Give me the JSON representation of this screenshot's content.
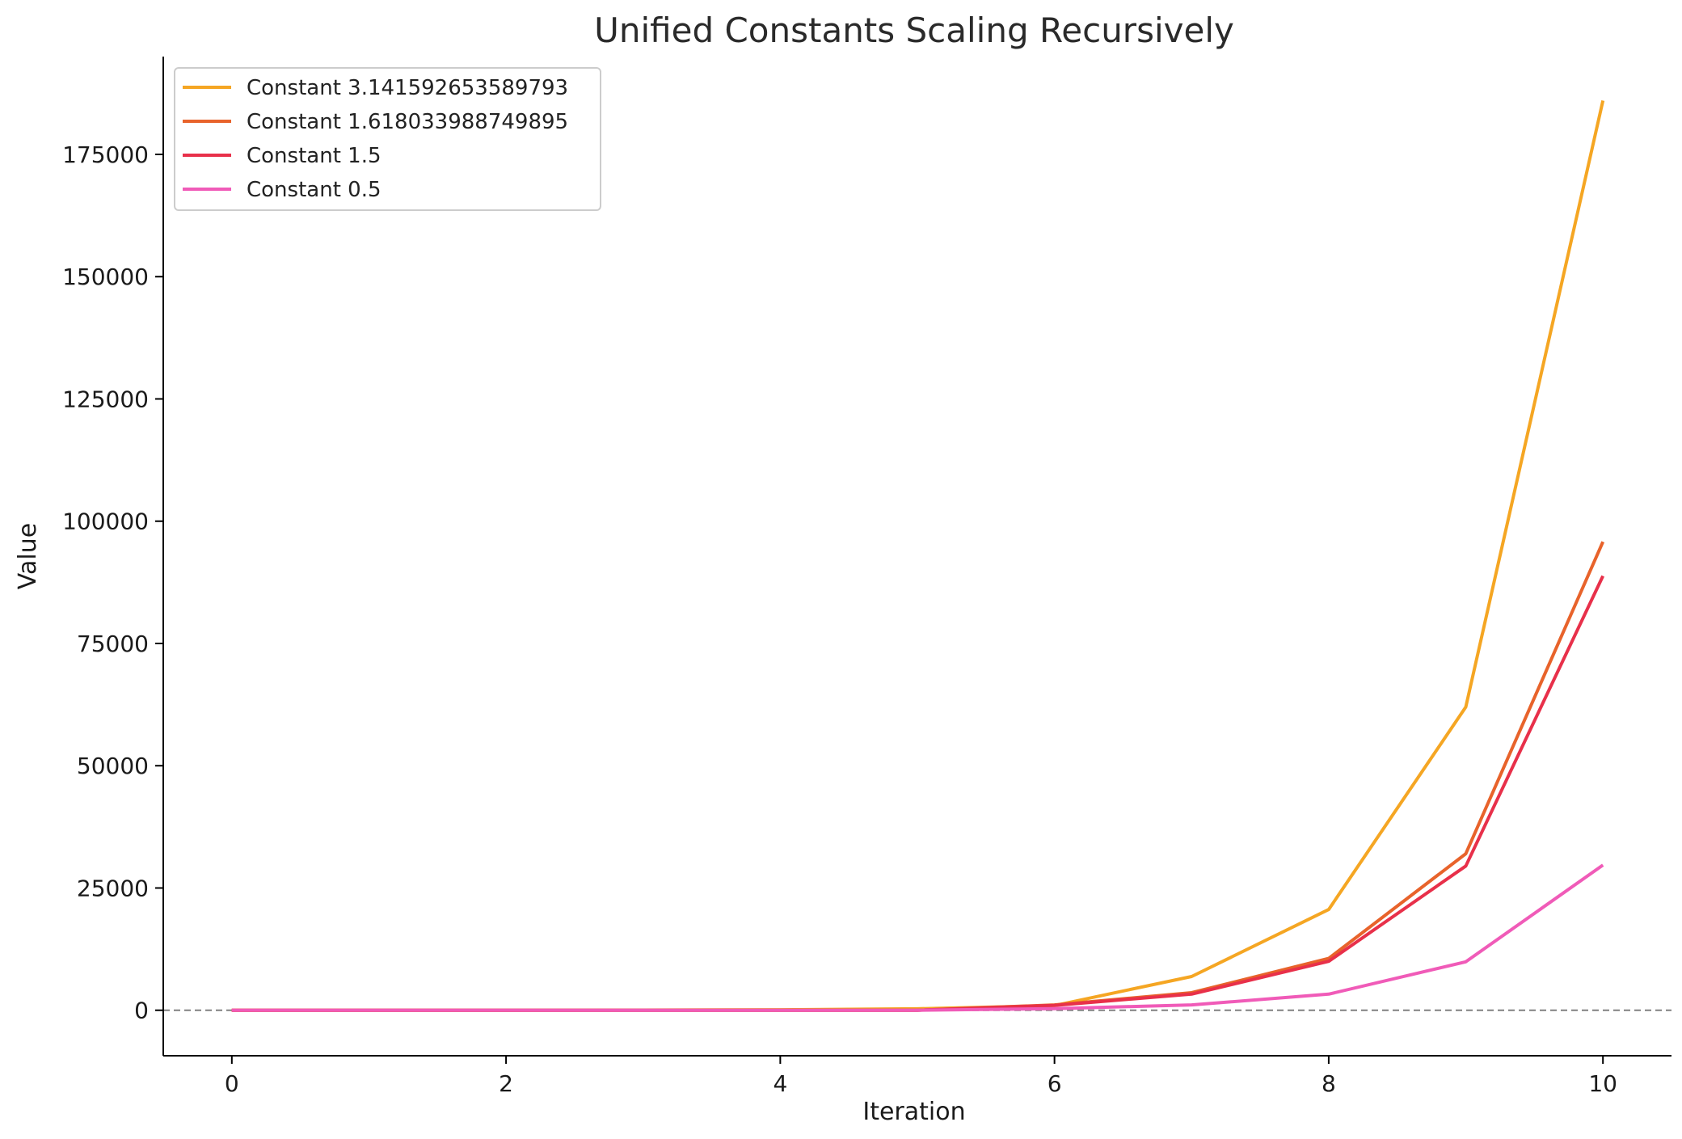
{
  "chart_data": {
    "type": "line",
    "title": "Unified Constants Scaling Recursively",
    "xlabel": "Iteration",
    "ylabel": "Value",
    "x": [
      0,
      1,
      2,
      3,
      4,
      5,
      6,
      7,
      8,
      9,
      10
    ],
    "xlim": [
      -0.5,
      10.5
    ],
    "ylim": [
      -9300,
      195000
    ],
    "xticks": [
      0,
      2,
      4,
      6,
      8,
      10
    ],
    "yticks": [
      0,
      25000,
      50000,
      75000,
      100000,
      125000,
      150000,
      175000
    ],
    "grid": false,
    "legend_position": "top-left",
    "reference_line": {
      "y": 0,
      "style": "dashed",
      "color": "#808080"
    },
    "series": [
      {
        "name": "Constant 3.141592653589793",
        "color": "#F5A623",
        "values": [
          1,
          3.14,
          9.87,
          31.0,
          97.4,
          306,
          961,
          6900,
          20600,
          62000,
          186000
        ]
      },
      {
        "name": "Constant 1.618033988749895",
        "color": "#E8632B",
        "values": [
          1,
          1.62,
          2.62,
          4.24,
          6.85,
          11.1,
          1100,
          3600,
          10600,
          32000,
          95800
        ]
      },
      {
        "name": "Constant 1.5",
        "color": "#E8304A",
        "values": [
          1,
          1.5,
          2.25,
          3.38,
          5.06,
          7.59,
          1000,
          3300,
          10000,
          29500,
          88800
        ]
      },
      {
        "name": "Constant 0.5",
        "color": "#F05BB8",
        "values": [
          0.5,
          0.25,
          0.13,
          0.06,
          0.03,
          0.02,
          330,
          1100,
          3300,
          9900,
          29700
        ]
      }
    ]
  }
}
